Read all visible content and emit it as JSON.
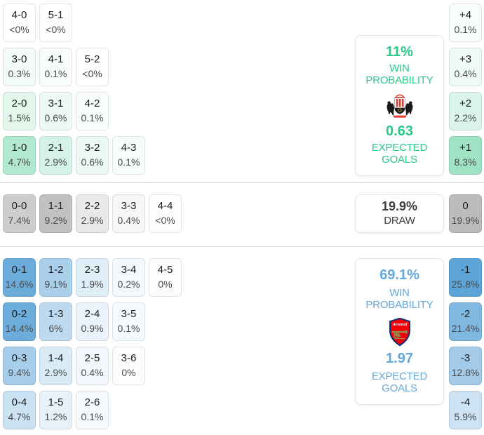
{
  "accent_colors": {
    "home": "#29c98a",
    "draw": "#3d3d3d",
    "away": "#64a7da"
  },
  "chart_data": {
    "type": "heatmap",
    "description": "Match score probability matrix (home vs away) with win probability and expected goals panels",
    "home_team": "Sunderland",
    "away_team": "Arsenal",
    "home": {
      "win_probability_pct": 11,
      "expected_goals": 0.63,
      "scores": [
        {
          "score": "4-0",
          "pct": "<0%"
        },
        {
          "score": "5-1",
          "pct": "<0%"
        },
        {
          "score": "3-0",
          "pct": "0.3%"
        },
        {
          "score": "4-1",
          "pct": "0.1%"
        },
        {
          "score": "5-2",
          "pct": "<0%"
        },
        {
          "score": "2-0",
          "pct": "1.5%"
        },
        {
          "score": "3-1",
          "pct": "0.6%"
        },
        {
          "score": "4-2",
          "pct": "0.1%"
        },
        {
          "score": "1-0",
          "pct": "4.7%"
        },
        {
          "score": "2-1",
          "pct": "2.9%"
        },
        {
          "score": "3-2",
          "pct": "0.6%"
        },
        {
          "score": "4-3",
          "pct": "0.1%"
        }
      ],
      "goal_diffs": [
        {
          "diff": "+4",
          "pct": "0.1%"
        },
        {
          "diff": "+3",
          "pct": "0.4%"
        },
        {
          "diff": "+2",
          "pct": "2.2%"
        },
        {
          "diff": "+1",
          "pct": "8.3%"
        }
      ]
    },
    "draw": {
      "probability_pct": 19.9,
      "scores": [
        {
          "score": "0-0",
          "pct": "7.4%"
        },
        {
          "score": "1-1",
          "pct": "9.2%"
        },
        {
          "score": "2-2",
          "pct": "2.9%"
        },
        {
          "score": "3-3",
          "pct": "0.4%"
        },
        {
          "score": "4-4",
          "pct": "<0%"
        }
      ],
      "goal_diffs": [
        {
          "diff": "0",
          "pct": "19.9%"
        }
      ]
    },
    "away": {
      "win_probability_pct": 69.1,
      "expected_goals": 1.97,
      "scores": [
        {
          "score": "0-1",
          "pct": "14.6%"
        },
        {
          "score": "1-2",
          "pct": "9.1%"
        },
        {
          "score": "2-3",
          "pct": "1.9%"
        },
        {
          "score": "3-4",
          "pct": "0.2%"
        },
        {
          "score": "4-5",
          "pct": "0%"
        },
        {
          "score": "0-2",
          "pct": "14.4%"
        },
        {
          "score": "1-3",
          "pct": "6%"
        },
        {
          "score": "2-4",
          "pct": "0.9%"
        },
        {
          "score": "3-5",
          "pct": "0.1%"
        },
        {
          "score": "0-3",
          "pct": "9.4%"
        },
        {
          "score": "1-4",
          "pct": "2.9%"
        },
        {
          "score": "2-5",
          "pct": "0.4%"
        },
        {
          "score": "3-6",
          "pct": "0%"
        },
        {
          "score": "0-4",
          "pct": "4.7%"
        },
        {
          "score": "1-5",
          "pct": "1.2%"
        },
        {
          "score": "2-6",
          "pct": "0.1%"
        }
      ],
      "goal_diffs": [
        {
          "diff": "-1",
          "pct": "25.8%"
        },
        {
          "diff": "-2",
          "pct": "21.4%"
        },
        {
          "diff": "-3",
          "pct": "12.8%"
        },
        {
          "diff": "-4",
          "pct": "5.9%"
        }
      ]
    }
  },
  "sections": [
    {
      "id": "home",
      "team": "Sunderland",
      "panel": {
        "win_value": "11%",
        "win_label": "WIN PROBABILITY",
        "eg_value": "0.63",
        "eg_label": "EXPECTED GOALS"
      },
      "rows": [
        [
          {
            "score": "4-0",
            "pct": "<0%",
            "bg": "#fefffe"
          },
          {
            "score": "5-1",
            "pct": "<0%",
            "bg": "#fefffe"
          }
        ],
        [
          {
            "score": "3-0",
            "pct": "0.3%",
            "bg": "#f3fbf7"
          },
          {
            "score": "4-1",
            "pct": "0.1%",
            "bg": "#f8fdfa"
          },
          {
            "score": "5-2",
            "pct": "<0%",
            "bg": "#fefffe"
          }
        ],
        [
          {
            "score": "2-0",
            "pct": "1.5%",
            "bg": "#e2f6ec"
          },
          {
            "score": "3-1",
            "pct": "0.6%",
            "bg": "#edf9f3"
          },
          {
            "score": "4-2",
            "pct": "0.1%",
            "bg": "#f8fdfa"
          }
        ],
        [
          {
            "score": "1-0",
            "pct": "4.7%",
            "bg": "#b2e8d0"
          },
          {
            "score": "2-1",
            "pct": "2.9%",
            "bg": "#d4f2e5"
          },
          {
            "score": "3-2",
            "pct": "0.6%",
            "bg": "#edf9f3"
          },
          {
            "score": "4-3",
            "pct": "0.1%",
            "bg": "#f8fdfa"
          }
        ]
      ],
      "diffs": [
        {
          "label": "+4",
          "pct": "0.1%",
          "bg": "#f8fdfa"
        },
        {
          "label": "+3",
          "pct": "0.4%",
          "bg": "#f0faf5"
        },
        {
          "label": "+2",
          "pct": "2.2%",
          "bg": "#daf4e9"
        },
        {
          "label": "+1",
          "pct": "8.3%",
          "bg": "#a0e3c4"
        }
      ]
    },
    {
      "id": "draw",
      "team": "",
      "panel": {
        "win_value": "19.9%",
        "win_label": "DRAW"
      },
      "rows": [
        [
          {
            "score": "0-0",
            "pct": "7.4%",
            "bg": "#cdcdcd"
          },
          {
            "score": "1-1",
            "pct": "9.2%",
            "bg": "#c1c1c1"
          },
          {
            "score": "2-2",
            "pct": "2.9%",
            "bg": "#e8e8e8"
          },
          {
            "score": "3-3",
            "pct": "0.4%",
            "bg": "#f7f7f7"
          },
          {
            "score": "4-4",
            "pct": "<0%",
            "bg": "#fefefe"
          }
        ]
      ],
      "diffs": [
        {
          "label": "0",
          "pct": "19.9%",
          "bg": "#bcbcbc"
        }
      ]
    },
    {
      "id": "away",
      "team": "Arsenal",
      "panel": {
        "win_value": "69.1%",
        "win_label": "WIN PROBABILITY",
        "eg_value": "1.97",
        "eg_label": "EXPECTED GOALS"
      },
      "rows": [
        [
          {
            "score": "0-1",
            "pct": "14.6%",
            "bg": "#6cacdb"
          },
          {
            "score": "1-2",
            "pct": "9.1%",
            "bg": "#a9cfeb"
          },
          {
            "score": "2-3",
            "pct": "1.9%",
            "bg": "#e0eef8"
          },
          {
            "score": "3-4",
            "pct": "0.2%",
            "bg": "#f4f9fd"
          },
          {
            "score": "4-5",
            "pct": "0%",
            "bg": "#fcfdfe"
          }
        ],
        [
          {
            "score": "0-2",
            "pct": "14.4%",
            "bg": "#6daddb"
          },
          {
            "score": "1-3",
            "pct": "6%",
            "bg": "#bedaf0"
          },
          {
            "score": "2-4",
            "pct": "0.9%",
            "bg": "#eaf3fb"
          },
          {
            "score": "3-5",
            "pct": "0.1%",
            "bg": "#f7fafd"
          }
        ],
        [
          {
            "score": "0-3",
            "pct": "9.4%",
            "bg": "#a6cdea"
          },
          {
            "score": "1-4",
            "pct": "2.9%",
            "bg": "#d9ebf7"
          },
          {
            "score": "2-5",
            "pct": "0.4%",
            "bg": "#f1f7fc"
          },
          {
            "score": "3-6",
            "pct": "0%",
            "bg": "#fcfdfe"
          }
        ],
        [
          {
            "score": "0-4",
            "pct": "4.7%",
            "bg": "#cbe2f3"
          },
          {
            "score": "1-5",
            "pct": "1.2%",
            "bg": "#e7f1fa"
          },
          {
            "score": "2-6",
            "pct": "0.1%",
            "bg": "#f7fafd"
          }
        ]
      ],
      "diffs": [
        {
          "label": "-1",
          "pct": "25.8%",
          "bg": "#5da5d8"
        },
        {
          "label": "-2",
          "pct": "21.4%",
          "bg": "#7fb8e0"
        },
        {
          "label": "-3",
          "pct": "12.8%",
          "bg": "#a3cbe9"
        },
        {
          "label": "-4",
          "pct": "5.9%",
          "bg": "#cde3f4"
        }
      ]
    }
  ]
}
